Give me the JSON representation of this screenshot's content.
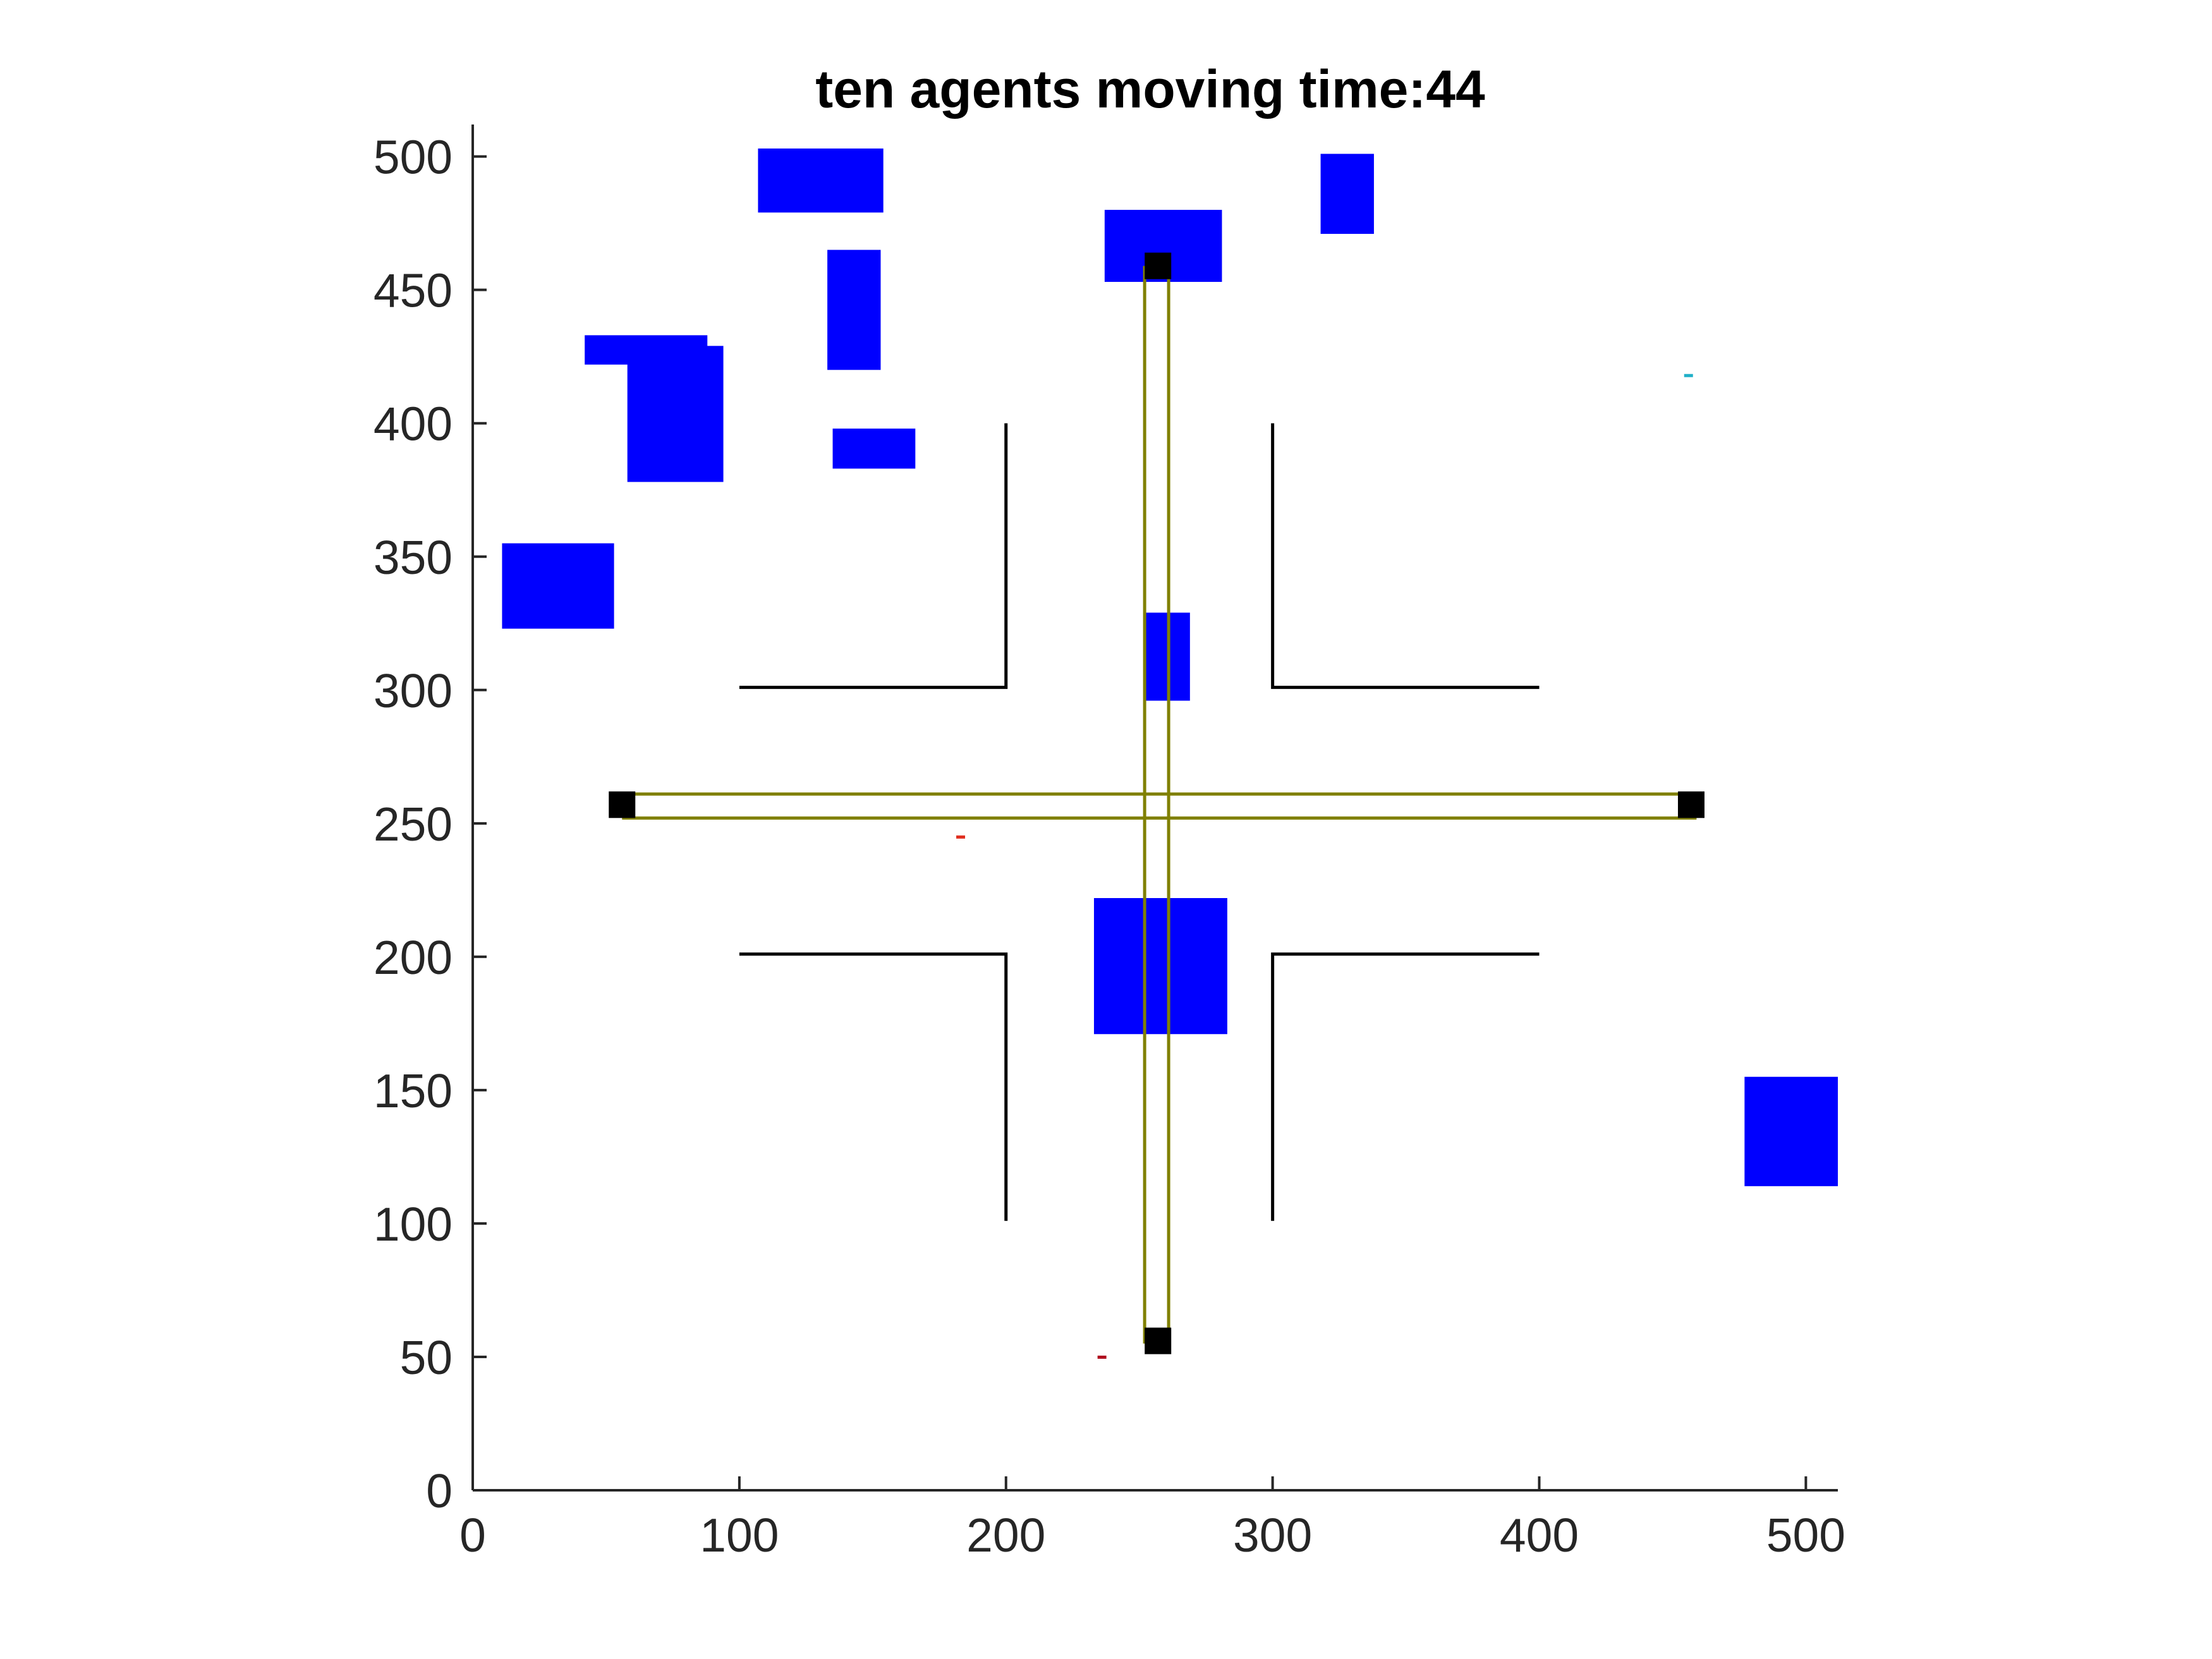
{
  "chart_data": {
    "type": "scatter",
    "title": "ten agents moving time:44",
    "xlabel": "",
    "ylabel": "",
    "xlim": [
      0,
      512
    ],
    "ylim": [
      0,
      512
    ],
    "xticks": [
      "0",
      "100",
      "200",
      "300",
      "400",
      "500"
    ],
    "yticks": [
      "0",
      "50",
      "100",
      "150",
      "200",
      "250",
      "300",
      "350",
      "400",
      "450",
      "500"
    ],
    "grid": false,
    "legend": "none",
    "colors": {
      "obstacle": "#0000ff",
      "wall": "#000000",
      "lane": "#808000",
      "endpoint": "#000000",
      "axis": "#262626"
    },
    "obstacles": [
      {
        "x0": 107,
        "x1": 154,
        "y0": 479,
        "y1": 503
      },
      {
        "x0": 237,
        "x1": 281,
        "y0": 453,
        "y1": 480
      },
      {
        "x0": 318,
        "x1": 338,
        "y0": 471,
        "y1": 501
      },
      {
        "x0": 133,
        "x1": 153,
        "y0": 420,
        "y1": 465
      },
      {
        "x0": 42,
        "x1": 88,
        "y0": 422,
        "y1": 433
      },
      {
        "x0": 58,
        "x1": 94,
        "y0": 378,
        "y1": 429
      },
      {
        "x0": 135,
        "x1": 166,
        "y0": 383,
        "y1": 398
      },
      {
        "x0": 11,
        "x1": 53,
        "y0": 323,
        "y1": 355
      },
      {
        "x0": 252,
        "x1": 269,
        "y0": 296,
        "y1": 329
      },
      {
        "x0": 233,
        "x1": 283,
        "y0": 171,
        "y1": 222
      },
      {
        "x0": 477,
        "x1": 512,
        "y0": 114,
        "y1": 155
      }
    ],
    "walls": [
      {
        "x": [
          200,
          200,
          100
        ],
        "y": [
          400,
          301,
          301
        ]
      },
      {
        "x": [
          300,
          300,
          400
        ],
        "y": [
          400,
          301,
          301
        ]
      },
      {
        "x": [
          100,
          200,
          200
        ],
        "y": [
          201,
          201,
          101
        ]
      },
      {
        "x": [
          400,
          300,
          300
        ],
        "y": [
          201,
          201,
          101
        ]
      }
    ],
    "lanes": [
      {
        "x": [
          252,
          252
        ],
        "y": [
          55,
          459
        ]
      },
      {
        "x": [
          261,
          261
        ],
        "y": [
          55,
          459
        ]
      },
      {
        "x": [
          56,
          459
        ],
        "y": [
          261,
          261
        ]
      },
      {
        "x": [
          56,
          459
        ],
        "y": [
          252,
          252
        ]
      }
    ],
    "endpoints": [
      {
        "x": 257,
        "y": 459
      },
      {
        "x": 56,
        "y": 257
      },
      {
        "x": 457,
        "y": 257
      },
      {
        "x": 257,
        "y": 56
      }
    ],
    "agents": [
      {
        "x": 456,
        "y": 418,
        "color": "#20b0c8"
      },
      {
        "x": 183,
        "y": 245,
        "color": "#e03020"
      },
      {
        "x": 236,
        "y": 50,
        "color": "#b01020"
      }
    ]
  }
}
